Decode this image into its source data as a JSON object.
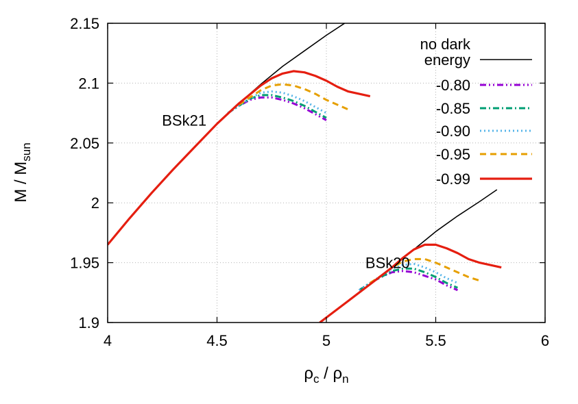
{
  "chart_data": {
    "type": "line",
    "xlabel": {
      "main": "ρ",
      "sub1": "c",
      "sep": " / ρ",
      "sub2": "n"
    },
    "ylabel": {
      "main": "M / M",
      "sub": "sun"
    },
    "xlim": [
      4,
      6
    ],
    "ylim": [
      1.9,
      2.15
    ],
    "xticks": [
      4,
      4.5,
      5,
      5.5,
      6
    ],
    "xtick_labels": [
      "4",
      "4.5",
      "5",
      "5.5",
      "6"
    ],
    "yticks": [
      1.9,
      1.95,
      2.0,
      2.05,
      2.1,
      2.15
    ],
    "ytick_labels": [
      "1.9",
      "1.95",
      "2",
      "2.05",
      "2.1",
      "2.15"
    ],
    "grid": "dotted",
    "legend_position": "top-right",
    "legend": [
      {
        "label_lines": [
          "no dark",
          "energy"
        ],
        "color": "#000000",
        "style": "solid"
      },
      {
        "label_lines": [
          "-0.80"
        ],
        "color": "#9400d3",
        "style": "dash-dot-dot"
      },
      {
        "label_lines": [
          "-0.85"
        ],
        "color": "#009e73",
        "style": "dash-dot"
      },
      {
        "label_lines": [
          "-0.90"
        ],
        "color": "#56b4e9",
        "style": "dotted"
      },
      {
        "label_lines": [
          "-0.95"
        ],
        "color": "#e69f00",
        "style": "dashed"
      },
      {
        "label_lines": [
          "-0.99"
        ],
        "color": "#e51e10",
        "style": "solid"
      }
    ],
    "annotations": [
      {
        "text": "BSk21",
        "x": 4.35,
        "y": 2.069
      },
      {
        "text": "BSk20",
        "x": 5.28,
        "y": 1.95
      }
    ],
    "models": [
      {
        "name": "BSk21",
        "series": [
          {
            "legend_index": 0,
            "x": [
              4.0,
              4.1,
              4.2,
              4.3,
              4.4,
              4.5,
              4.6,
              4.7,
              4.8,
              4.9,
              5.0,
              5.1
            ],
            "y": [
              1.965,
              1.987,
              2.008,
              2.028,
              2.047,
              2.066,
              2.083,
              2.099,
              2.114,
              2.127,
              2.14,
              2.152
            ]
          },
          {
            "legend_index": 1,
            "x": [
              4.55,
              4.6,
              4.65,
              4.7,
              4.75,
              4.8,
              4.85,
              4.9,
              4.95,
              5.0
            ],
            "y": [
              2.075,
              2.081,
              2.086,
              2.088,
              2.088,
              2.086,
              2.083,
              2.079,
              2.074,
              2.069
            ]
          },
          {
            "legend_index": 2,
            "x": [
              4.55,
              4.6,
              4.65,
              4.7,
              4.75,
              4.8,
              4.85,
              4.9,
              4.95,
              5.0
            ],
            "y": [
              2.075,
              2.081,
              2.087,
              2.09,
              2.09,
              2.088,
              2.085,
              2.081,
              2.076,
              2.071
            ]
          },
          {
            "legend_index": 3,
            "x": [
              4.55,
              4.6,
              4.65,
              4.7,
              4.75,
              4.8,
              4.85,
              4.9,
              4.95,
              5.0
            ],
            "y": [
              2.075,
              2.081,
              2.087,
              2.092,
              2.093,
              2.092,
              2.089,
              2.085,
              2.08,
              2.075
            ]
          },
          {
            "legend_index": 4,
            "x": [
              4.6,
              4.65,
              4.7,
              4.75,
              4.8,
              4.85,
              4.9,
              4.95,
              5.0,
              5.05,
              5.1
            ],
            "y": [
              2.082,
              2.088,
              2.094,
              2.098,
              2.099,
              2.098,
              2.095,
              2.091,
              2.086,
              2.082,
              2.078
            ]
          },
          {
            "legend_index": 5,
            "x": [
              4.0,
              4.1,
              4.2,
              4.3,
              4.4,
              4.5,
              4.6,
              4.7,
              4.75,
              4.8,
              4.85,
              4.9,
              4.95,
              5.0,
              5.05,
              5.1,
              5.15,
              5.2
            ],
            "y": [
              1.965,
              1.987,
              2.008,
              2.028,
              2.047,
              2.066,
              2.083,
              2.098,
              2.104,
              2.108,
              2.11,
              2.109,
              2.106,
              2.102,
              2.097,
              2.093,
              2.091,
              2.089
            ]
          }
        ]
      },
      {
        "name": "BSk20",
        "series": [
          {
            "legend_index": 0,
            "x": [
              4.97,
              5.1,
              5.2,
              5.3,
              5.4,
              5.5,
              5.6,
              5.7,
              5.78
            ],
            "y": [
              1.9,
              1.918,
              1.932,
              1.946,
              1.961,
              1.976,
              1.989,
              2.001,
              2.011
            ]
          },
          {
            "legend_index": 1,
            "x": [
              5.15,
              5.2,
              5.25,
              5.3,
              5.35,
              5.4,
              5.45,
              5.5,
              5.55,
              5.6
            ],
            "y": [
              1.927,
              1.933,
              1.938,
              1.942,
              1.943,
              1.942,
              1.939,
              1.936,
              1.931,
              1.927
            ]
          },
          {
            "legend_index": 2,
            "x": [
              5.15,
              5.2,
              5.25,
              5.3,
              5.35,
              5.4,
              5.45,
              5.5,
              5.55,
              5.6
            ],
            "y": [
              1.927,
              1.933,
              1.938,
              1.943,
              1.945,
              1.945,
              1.942,
              1.938,
              1.933,
              1.929
            ]
          },
          {
            "legend_index": 3,
            "x": [
              5.15,
              5.2,
              5.25,
              5.3,
              5.35,
              5.4,
              5.45,
              5.5,
              5.55,
              5.6
            ],
            "y": [
              1.927,
              1.933,
              1.939,
              1.945,
              1.948,
              1.949,
              1.946,
              1.942,
              1.937,
              1.933
            ]
          },
          {
            "legend_index": 4,
            "x": [
              5.2,
              5.25,
              5.3,
              5.35,
              5.4,
              5.45,
              5.5,
              5.55,
              5.6,
              5.65,
              5.7
            ],
            "y": [
              1.933,
              1.939,
              1.946,
              1.951,
              1.953,
              1.953,
              1.95,
              1.946,
              1.942,
              1.938,
              1.935
            ]
          },
          {
            "legend_index": 5,
            "x": [
              4.97,
              5.1,
              5.2,
              5.3,
              5.35,
              5.4,
              5.45,
              5.5,
              5.55,
              5.6,
              5.65,
              5.7,
              5.75,
              5.8
            ],
            "y": [
              1.9,
              1.918,
              1.932,
              1.946,
              1.954,
              1.961,
              1.965,
              1.965,
              1.962,
              1.958,
              1.953,
              1.95,
              1.948,
              1.946
            ]
          }
        ]
      }
    ]
  }
}
